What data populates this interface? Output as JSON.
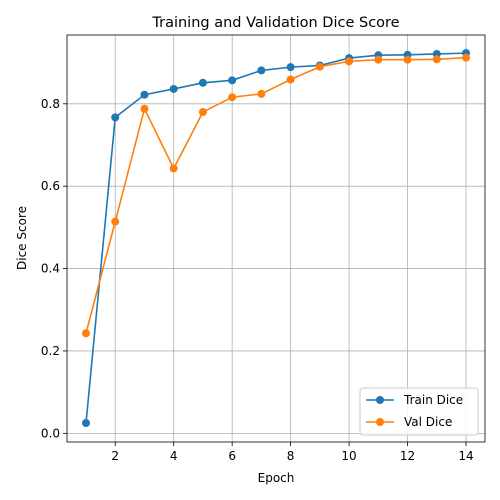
{
  "chart_data": {
    "type": "line",
    "title": "Training and Validation Dice Score",
    "xlabel": "Epoch",
    "ylabel": "Dice Score",
    "x": [
      1,
      2,
      3,
      4,
      5,
      6,
      7,
      8,
      9,
      10,
      11,
      12,
      13,
      14
    ],
    "xlim": [
      0.35,
      14.65
    ],
    "ylim": [
      -0.021,
      0.967
    ],
    "xticks": [
      2,
      4,
      6,
      8,
      10,
      12,
      14
    ],
    "yticks": [
      0.0,
      0.2,
      0.4,
      0.6,
      0.8
    ],
    "xtick_labels": [
      "2",
      "4",
      "6",
      "8",
      "10",
      "12",
      "14"
    ],
    "ytick_labels": [
      "0.0",
      "0.2",
      "0.4",
      "0.6",
      "0.8"
    ],
    "grid": true,
    "legend_position": "bottom-right",
    "series": [
      {
        "name": "Train Dice",
        "color": "#1f77b4",
        "marker": "circle",
        "values": [
          0.025,
          0.767,
          0.822,
          0.836,
          0.851,
          0.857,
          0.881,
          0.889,
          0.893,
          0.911,
          0.918,
          0.919,
          0.921,
          0.923
        ]
      },
      {
        "name": "Val Dice",
        "color": "#ff7f0e",
        "marker": "circle",
        "values": [
          0.243,
          0.514,
          0.788,
          0.643,
          0.78,
          0.816,
          0.824,
          0.859,
          0.89,
          0.903,
          0.907,
          0.907,
          0.908,
          0.912
        ]
      }
    ]
  }
}
